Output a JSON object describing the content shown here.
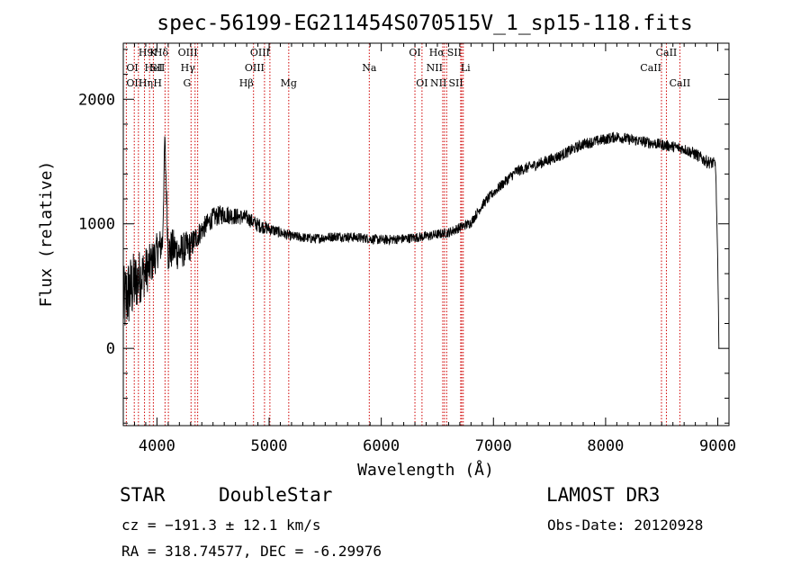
{
  "chart_data": {
    "type": "line",
    "title": "spec-56199-EG211454S070515V_1_sp15-118.fits",
    "xlabel": "Wavelength (Å)",
    "ylabel": "Flux (relative)",
    "xlim": [
      3700,
      9100
    ],
    "ylim": [
      -620,
      2450
    ],
    "x_ticks": [
      4000,
      5000,
      6000,
      7000,
      8000,
      9000
    ],
    "x_tick_labels": [
      "4000",
      "5000",
      "6000",
      "7000",
      "8000",
      "9000"
    ],
    "y_ticks": [
      0,
      1000,
      2000
    ],
    "y_tick_labels": [
      "0",
      "1000",
      "2000"
    ],
    "series": [
      {
        "name": "flux",
        "x": [
          3700,
          3750,
          3800,
          3850,
          3900,
          3950,
          4000,
          4050,
          4070,
          4100,
          4150,
          4200,
          4250,
          4300,
          4350,
          4400,
          4500,
          4600,
          4700,
          4800,
          4900,
          5000,
          5200,
          5400,
          5600,
          5800,
          6000,
          6200,
          6400,
          6600,
          6700,
          6800,
          6900,
          7000,
          7200,
          7400,
          7600,
          7800,
          8000,
          8100,
          8200,
          8400,
          8600,
          8700,
          8800,
          8900,
          8980,
          9000,
          9010
        ],
        "y": [
          350,
          450,
          520,
          580,
          620,
          680,
          780,
          850,
          1700,
          780,
          800,
          770,
          800,
          820,
          890,
          950,
          1050,
          1080,
          1060,
          1050,
          990,
          960,
          900,
          880,
          900,
          890,
          870,
          880,
          900,
          930,
          970,
          1010,
          1150,
          1250,
          1420,
          1480,
          1550,
          1640,
          1680,
          1700,
          1680,
          1650,
          1620,
          1600,
          1560,
          1500,
          1480,
          700,
          0
        ],
        "noise": [
          300,
          300,
          260,
          220,
          200,
          170,
          150,
          140,
          60,
          180,
          160,
          150,
          140,
          120,
          100,
          90,
          80,
          80,
          70,
          60,
          60,
          50,
          40,
          40,
          40,
          40,
          40,
          40,
          40,
          40,
          40,
          40,
          40,
          40,
          45,
          45,
          45,
          45,
          45,
          45,
          45,
          45,
          45,
          45,
          50,
          50,
          50,
          0,
          0
        ]
      }
    ],
    "annotations": [
      {
        "label": "H9",
        "wl": 3835,
        "row": 0,
        "anchor": "start"
      },
      {
        "label": "K",
        "wl": 3934,
        "row": 0,
        "anchor": "start"
      },
      {
        "label": "Hδ",
        "wl": 4102,
        "row": 0,
        "anchor": "end"
      },
      {
        "label": "OIII",
        "wl": 4363,
        "row": 0,
        "anchor": "end"
      },
      {
        "label": "OIII",
        "wl": 5007,
        "row": 0,
        "anchor": "end"
      },
      {
        "label": "OI",
        "wl": 6300,
        "row": 0,
        "anchor": "middle"
      },
      {
        "label": "Hα",
        "wl": 6563,
        "row": 0,
        "anchor": "end"
      },
      {
        "label": "SII",
        "wl": 6717,
        "row": 0,
        "anchor": "end"
      },
      {
        "label": "CaII",
        "wl": 8542,
        "row": 0,
        "anchor": "middle"
      },
      {
        "label": "OI",
        "wl": 3727,
        "row": 1,
        "anchor": "start"
      },
      {
        "label": "HeI",
        "wl": 3889,
        "row": 1,
        "anchor": "start"
      },
      {
        "label": "SII",
        "wl": 4072,
        "row": 1,
        "anchor": "end"
      },
      {
        "label": "Hγ",
        "wl": 4340,
        "row": 1,
        "anchor": "end"
      },
      {
        "label": "OIII",
        "wl": 4959,
        "row": 1,
        "anchor": "end"
      },
      {
        "label": "Na",
        "wl": 5893,
        "row": 1,
        "anchor": "middle"
      },
      {
        "label": "NII",
        "wl": 6548,
        "row": 1,
        "anchor": "end"
      },
      {
        "label": "Li",
        "wl": 6708,
        "row": 1,
        "anchor": "start"
      },
      {
        "label": "CaII",
        "wl": 8498,
        "row": 1,
        "anchor": "end"
      },
      {
        "label": "OII",
        "wl": 3727,
        "row": 2,
        "anchor": "start"
      },
      {
        "label": "Hη",
        "wl": 3835,
        "row": 2,
        "anchor": "start"
      },
      {
        "label": "H",
        "wl": 3968,
        "row": 2,
        "anchor": "start"
      },
      {
        "label": "G",
        "wl": 4304,
        "row": 2,
        "anchor": "end"
      },
      {
        "label": "Hβ",
        "wl": 4861,
        "row": 2,
        "anchor": "end"
      },
      {
        "label": "Mg",
        "wl": 5175,
        "row": 2,
        "anchor": "middle"
      },
      {
        "label": "OI",
        "wl": 6363,
        "row": 2,
        "anchor": "middle"
      },
      {
        "label": "NII",
        "wl": 6583,
        "row": 2,
        "anchor": "end"
      },
      {
        "label": "SII",
        "wl": 6731,
        "row": 2,
        "anchor": "end"
      },
      {
        "label": "CaII",
        "wl": 8662,
        "row": 2,
        "anchor": "middle"
      }
    ],
    "line_marks": [
      3727,
      3798,
      3835,
      3889,
      3934,
      3968,
      4072,
      4102,
      4304,
      4340,
      4363,
      4861,
      4959,
      5007,
      5175,
      5893,
      6300,
      6363,
      6548,
      6563,
      6583,
      6708,
      6717,
      6731,
      8498,
      8542,
      8662
    ],
    "colors": {
      "axes": "#000000",
      "spectrum": "#000000",
      "line_marks": "#d00000"
    }
  },
  "info": {
    "class": "STAR",
    "subclass": "DoubleStar",
    "survey": "LAMOST DR3",
    "cz": "cz = −191.3 ± 12.1 km/s",
    "obs_date": "Obs-Date: 20120928",
    "coords": "RA = 318.74577, DEC =  -6.29976"
  }
}
